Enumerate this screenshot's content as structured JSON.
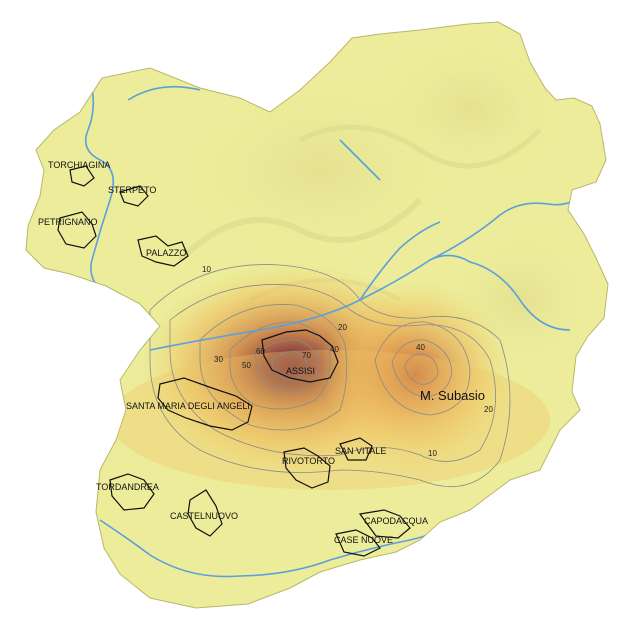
{
  "map": {
    "places": [
      {
        "id": "torchiagina",
        "label": "TORCHIAGINA"
      },
      {
        "id": "sterpeto",
        "label": "STERPETO"
      },
      {
        "id": "petrignano",
        "label": "PETRIGNANO"
      },
      {
        "id": "palazzo",
        "label": "PALAZZO"
      },
      {
        "id": "assisi",
        "label": "ASSISI"
      },
      {
        "id": "santa-maria",
        "label": "SANTA MARIA DEGLI ANGELI"
      },
      {
        "id": "san-vitale",
        "label": "SAN VITALE"
      },
      {
        "id": "rivotorto",
        "label": "RIVOTORTO"
      },
      {
        "id": "tordandrea",
        "label": "TORDANDREA"
      },
      {
        "id": "castelnuovo",
        "label": "CASTELNUOVO"
      },
      {
        "id": "capodacqua",
        "label": "CAPODACQUA"
      },
      {
        "id": "case-nuove",
        "label": "CASE NUOVE"
      }
    ],
    "peak_label": "M. Subasio",
    "contour_labels": [
      "10",
      "20",
      "30",
      "40",
      "50",
      "60",
      "70",
      "40",
      "20",
      "10"
    ],
    "colors": {
      "terrain": "#ecec9a",
      "terrain_edge": "#b8b86a",
      "river": "#5aa0dc",
      "heat_low": "#f3c65a",
      "heat_mid": "#d9863a",
      "heat_high": "#7a2a3a",
      "contour": "#8a8a8a",
      "settlement": "#111111"
    }
  }
}
